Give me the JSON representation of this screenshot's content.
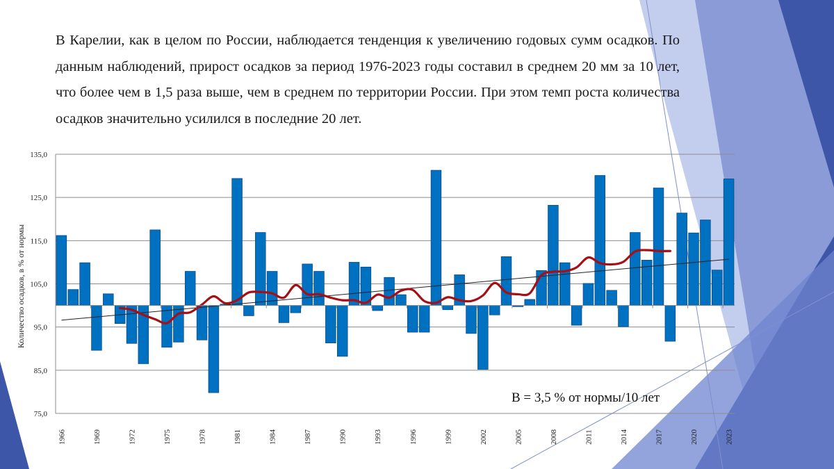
{
  "text": {
    "paragraph": "В Карелии, как в целом по России, наблюдается тенденция к увеличению годовых сумм осадков. По данным наблюдений, прирост осадков за период 1976-2023 годы составил в среднем  20 мм за 10 лет, что более чем в 1,5 раза выше, чем в среднем по территории России. При этом темп роста количества осадков значительно усилился в последние 20 лет."
  },
  "colors": {
    "bar": "#0070c0",
    "bar_edge": "#0a3d7a",
    "smooth_line": "#a50f15",
    "trend_line": "#222222",
    "grid": "#8c8c8c",
    "decor_dark": "#3e56a8",
    "decor_mid": "#6f84cf",
    "decor_light": "#c3cdee"
  },
  "chart_data": {
    "type": "bar",
    "ylabel": "Количество осадков,  в % от нормы",
    "ylim": [
      75,
      135
    ],
    "baseline": 100,
    "y_ticks": [
      "135,0",
      "125,0",
      "115,0",
      "105,0",
      "95,0",
      "85,0",
      "75,0"
    ],
    "y_tick_values": [
      135,
      125,
      115,
      105,
      95,
      85,
      75
    ],
    "grid": true,
    "x_tick_labels": [
      "1966",
      "1969",
      "1972",
      "1975",
      "1978",
      "1981",
      "1984",
      "1987",
      "1990",
      "1993",
      "1996",
      "1999",
      "2002",
      "2005",
      "2008",
      "2011",
      "2014",
      "2017",
      "2020",
      "2023"
    ],
    "years": [
      1966,
      1967,
      1968,
      1969,
      1970,
      1971,
      1972,
      1973,
      1974,
      1975,
      1976,
      1977,
      1978,
      1979,
      1980,
      1981,
      1982,
      1983,
      1984,
      1985,
      1986,
      1987,
      1988,
      1989,
      1990,
      1991,
      1992,
      1993,
      1994,
      1995,
      1996,
      1997,
      1998,
      1999,
      2000,
      2001,
      2002,
      2003,
      2004,
      2005,
      2006,
      2007,
      2008,
      2009,
      2010,
      2011,
      2012,
      2013,
      2014,
      2015,
      2016,
      2017,
      2018,
      2019,
      2020,
      2021,
      2022,
      2023
    ],
    "series": [
      {
        "type": "bar",
        "values": [
          116.2,
          103.7,
          109.9,
          89.6,
          102.7,
          95.8,
          91.2,
          86.5,
          117.5,
          90.3,
          91.5,
          107.9,
          92.0,
          79.8,
          100.3,
          129.4,
          97.6,
          116.9,
          107.9,
          96.0,
          98.3,
          109.6,
          107.9,
          91.3,
          88.2,
          110.0,
          108.9,
          98.8,
          106.5,
          102.5,
          93.8,
          93.8,
          131.3,
          99.0,
          107.1,
          93.5,
          85.2,
          97.8,
          111.3,
          99.7,
          101.4,
          108.1,
          123.2,
          109.9,
          95.4,
          105.1,
          130.1,
          103.5,
          95.1,
          116.9,
          110.5,
          127.2,
          91.7,
          121.4,
          116.8,
          119.8,
          108.2,
          129.3
        ]
      },
      {
        "type": "line",
        "style": "smoothed",
        "x": [
          1971,
          1972,
          1973,
          1974,
          1975,
          1976,
          1977,
          1978,
          1979,
          1980,
          1981,
          1982,
          1983,
          1984,
          1985,
          1986,
          1987,
          1988,
          1989,
          1990,
          1991,
          1992,
          1993,
          1994,
          1995,
          1996,
          1997,
          1998,
          1999,
          2000,
          2001,
          2002,
          2003,
          2004,
          2005,
          2006,
          2007,
          2008,
          2009,
          2010,
          2011,
          2012,
          2013,
          2014,
          2015,
          2016,
          2017,
          2018
        ],
        "values": [
          99.4,
          99.0,
          97.8,
          96.8,
          95.9,
          98.1,
          98.4,
          100.2,
          102.1,
          100.5,
          101.2,
          103.0,
          103.1,
          102.8,
          101.8,
          104.7,
          102.6,
          102.6,
          101.8,
          101.2,
          101.2,
          100.6,
          102.5,
          101.8,
          103.4,
          103.6,
          101.0,
          100.6,
          101.9,
          101.2,
          101.0,
          102.3,
          105.2,
          103.0,
          102.6,
          102.8,
          107.0,
          107.8,
          107.9,
          108.8,
          111.1,
          109.8,
          109.5,
          110.1,
          112.5,
          112.8,
          112.6,
          112.6
        ]
      },
      {
        "type": "line",
        "style": "linear_trend",
        "x": [
          1966,
          2023
        ],
        "values": [
          96.6,
          110.7
        ]
      }
    ],
    "annotation": "B = 3,5 % от нормы/10 лет"
  }
}
